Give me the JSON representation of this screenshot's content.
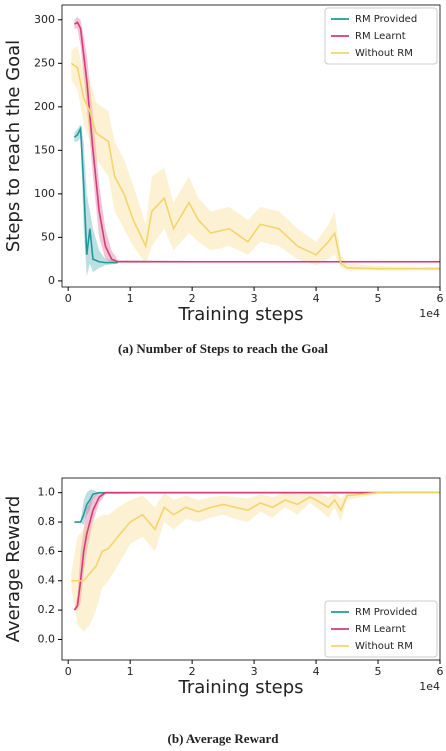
{
  "chart_data": [
    {
      "type": "line",
      "caption": "(a) Number of Steps to reach the Goal",
      "xlabel": "Training steps",
      "ylabel": "Steps to reach the Goal",
      "x_offset_label": "1e4",
      "xlim": [
        -1000,
        60000
      ],
      "ylim": [
        -7,
        317
      ],
      "xticks": [
        0,
        {
          "value": 10000,
          "label": "1"
        },
        {
          "value": 20000,
          "label": "2"
        },
        {
          "value": 30000,
          "label": "3"
        },
        {
          "value": 40000,
          "label": "4"
        },
        {
          "value": 50000,
          "label": "5"
        },
        {
          "value": 60000,
          "label": "6"
        }
      ],
      "yticks": [
        0,
        50,
        100,
        150,
        200,
        250,
        300
      ],
      "grid": false,
      "legend": "upper right",
      "series": [
        {
          "name": "RM Provided",
          "color": "#21999a",
          "x": [
            1000,
            1500,
            2000,
            2500,
            3000,
            3500,
            4000,
            5000,
            6000,
            8000
          ],
          "values": [
            165,
            168,
            175,
            110,
            30,
            60,
            25,
            22,
            21,
            21
          ],
          "lower": [
            160,
            160,
            165,
            60,
            5,
            20,
            10,
            15,
            18,
            20
          ],
          "upper": [
            170,
            175,
            180,
            160,
            100,
            80,
            60,
            35,
            25,
            22
          ]
        },
        {
          "name": "RM Learnt",
          "color": "#d63a78",
          "x": [
            1000,
            1500,
            2000,
            3000,
            4000,
            5000,
            6000,
            7000,
            8000,
            20000,
            40000,
            60000
          ],
          "values": [
            295,
            297,
            290,
            230,
            150,
            80,
            40,
            25,
            22,
            22,
            22,
            22
          ],
          "lower": [
            290,
            290,
            270,
            200,
            120,
            50,
            25,
            21,
            21,
            21,
            21,
            21
          ],
          "upper": [
            300,
            303,
            300,
            260,
            190,
            110,
            60,
            35,
            24,
            23,
            23,
            23
          ]
        },
        {
          "name": "Without RM",
          "color": "#f5d46e",
          "x": [
            500,
            1500,
            2500,
            3500,
            4500,
            5500,
            6500,
            7500,
            9000,
            10500,
            12500,
            13500,
            15500,
            17000,
            19500,
            21000,
            23000,
            26000,
            29000,
            31000,
            34000,
            37000,
            40000,
            42000,
            43000,
            44000,
            45000,
            50000,
            60000
          ],
          "values": [
            250,
            245,
            210,
            195,
            170,
            165,
            160,
            120,
            100,
            70,
            40,
            80,
            95,
            60,
            90,
            70,
            55,
            60,
            45,
            65,
            60,
            40,
            30,
            45,
            55,
            20,
            15,
            14,
            14
          ],
          "lower": [
            230,
            220,
            180,
            160,
            140,
            130,
            120,
            80,
            60,
            40,
            20,
            40,
            60,
            35,
            55,
            45,
            35,
            40,
            30,
            45,
            40,
            25,
            18,
            25,
            30,
            15,
            12,
            12,
            12
          ],
          "upper": [
            265,
            270,
            240,
            230,
            205,
            200,
            195,
            160,
            140,
            110,
            65,
            120,
            130,
            90,
            120,
            95,
            80,
            85,
            70,
            85,
            80,
            60,
            45,
            65,
            80,
            30,
            20,
            17,
            16
          ]
        }
      ]
    },
    {
      "type": "line",
      "caption": "(b) Average Reward",
      "xlabel": "Training steps",
      "ylabel": "Average Reward",
      "x_offset_label": "1e4",
      "xlim": [
        -1000,
        60000
      ],
      "ylim": [
        -0.14,
        1.1
      ],
      "xticks": [
        0,
        {
          "value": 10000,
          "label": "1"
        },
        {
          "value": 20000,
          "label": "2"
        },
        {
          "value": 30000,
          "label": "3"
        },
        {
          "value": 40000,
          "label": "4"
        },
        {
          "value": 50000,
          "label": "5"
        },
        {
          "value": 60000,
          "label": "6"
        }
      ],
      "yticks": [
        {
          "value": 0,
          "label": "0.0"
        },
        0.2,
        0.4,
        0.6,
        0.8,
        {
          "value": 1,
          "label": "1.0"
        }
      ],
      "grid": false,
      "legend": "lower right",
      "series": [
        {
          "name": "RM Provided",
          "color": "#21999a",
          "x": [
            1000,
            2000,
            2500,
            3000,
            3500,
            4000,
            5000,
            20000,
            60000
          ],
          "values": [
            0.8,
            0.8,
            0.85,
            0.92,
            0.95,
            0.99,
            1,
            1,
            1
          ],
          "lower": [
            0.8,
            0.8,
            0.78,
            0.85,
            0.88,
            0.96,
            1,
            1,
            1
          ],
          "upper": [
            0.8,
            0.8,
            0.95,
            1.0,
            1.02,
            1.02,
            1,
            1,
            1
          ]
        },
        {
          "name": "RM Learnt",
          "color": "#d63a78",
          "x": [
            1000,
            1500,
            2000,
            2500,
            3000,
            4000,
            5000,
            6000,
            20000,
            60000
          ],
          "values": [
            0.2,
            0.23,
            0.4,
            0.6,
            0.72,
            0.88,
            0.97,
            1,
            1,
            1
          ],
          "lower": [
            0.2,
            0.2,
            0.25,
            0.45,
            0.6,
            0.8,
            0.93,
            0.99,
            1,
            1
          ],
          "upper": [
            0.2,
            0.3,
            0.6,
            0.75,
            0.9,
            0.97,
            1.0,
            1.0,
            1,
            1
          ]
        },
        {
          "name": "Without RM",
          "color": "#f5d46e",
          "x": [
            500,
            1500,
            2500,
            3500,
            4500,
            5500,
            6500,
            8000,
            10000,
            12000,
            14000,
            15500,
            17000,
            19000,
            21000,
            23000,
            25000,
            27000,
            29000,
            31000,
            33000,
            35000,
            37000,
            39000,
            40000,
            42000,
            43000,
            44000,
            45000,
            50000,
            60000
          ],
          "values": [
            0.4,
            0.4,
            0.4,
            0.45,
            0.5,
            0.6,
            0.62,
            0.7,
            0.8,
            0.85,
            0.75,
            0.9,
            0.85,
            0.9,
            0.87,
            0.9,
            0.92,
            0.9,
            0.88,
            0.93,
            0.9,
            0.95,
            0.92,
            0.97,
            0.95,
            0.9,
            0.95,
            0.88,
            0.98,
            1,
            1
          ],
          "lower": [
            0.35,
            0.1,
            0.05,
            0.1,
            0.2,
            0.35,
            0.4,
            0.5,
            0.65,
            0.7,
            0.6,
            0.8,
            0.75,
            0.82,
            0.8,
            0.83,
            0.85,
            0.82,
            0.8,
            0.87,
            0.83,
            0.9,
            0.85,
            0.93,
            0.9,
            0.83,
            0.9,
            0.8,
            0.95,
            0.99,
            1
          ],
          "upper": [
            0.45,
            0.7,
            0.75,
            0.8,
            0.82,
            0.85,
            0.85,
            0.9,
            0.95,
            0.98,
            0.9,
            1,
            0.95,
            0.98,
            0.95,
            0.97,
            0.98,
            0.97,
            0.96,
            0.99,
            0.97,
            1,
            0.99,
            1,
            1,
            0.97,
            1,
            0.96,
            1,
            1,
            1
          ]
        }
      ]
    }
  ]
}
